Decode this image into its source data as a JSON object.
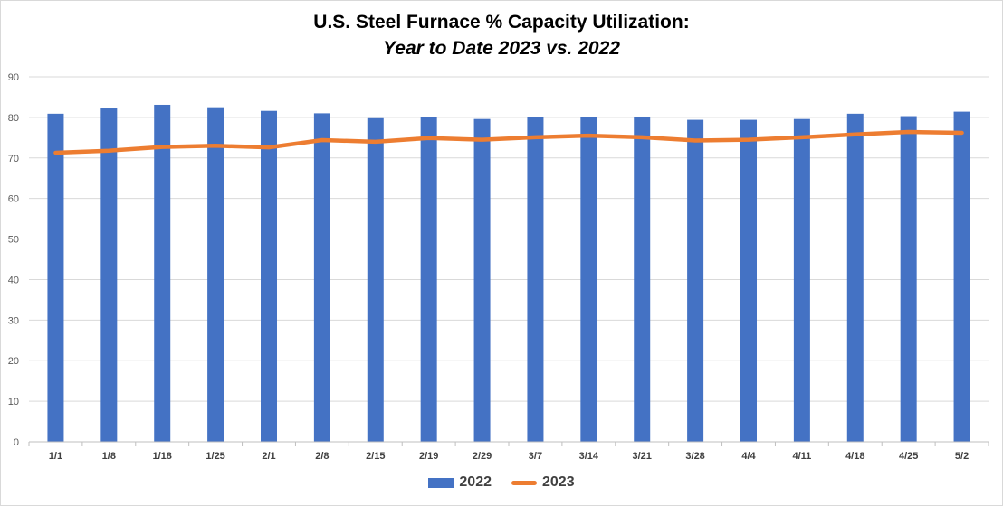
{
  "chart_data": {
    "type": "bar",
    "title": "U.S. Steel Furnace % Capacity Utilization:",
    "subtitle": "Year to Date 2023 vs. 2022",
    "categories": [
      "1/1",
      "1/8",
      "1/18",
      "1/25",
      "2/1",
      "2/8",
      "2/15",
      "2/19",
      "2/29",
      "3/7",
      "3/14",
      "3/21",
      "3/28",
      "4/4",
      "4/11",
      "4/18",
      "4/25",
      "5/2"
    ],
    "series": [
      {
        "name": "2022",
        "type": "bar",
        "color": "#4472c4",
        "values": [
          80.9,
          82.2,
          83.1,
          82.5,
          81.6,
          81.0,
          79.8,
          80.0,
          79.6,
          80.0,
          80.0,
          80.2,
          79.4,
          79.4,
          79.6,
          80.9,
          80.3,
          81.4
        ]
      },
      {
        "name": "2023",
        "type": "line",
        "color": "#ed7d31",
        "values": [
          71.3,
          71.8,
          72.7,
          73.0,
          72.6,
          74.4,
          74.0,
          74.9,
          74.5,
          75.1,
          75.5,
          75.1,
          74.3,
          74.5,
          75.1,
          75.8,
          76.4,
          76.2
        ]
      }
    ],
    "ylim": [
      0,
      90
    ],
    "yticks": [
      0,
      10,
      20,
      30,
      40,
      50,
      60,
      70,
      80,
      90
    ],
    "grid": true,
    "legend_position": "bottom"
  }
}
